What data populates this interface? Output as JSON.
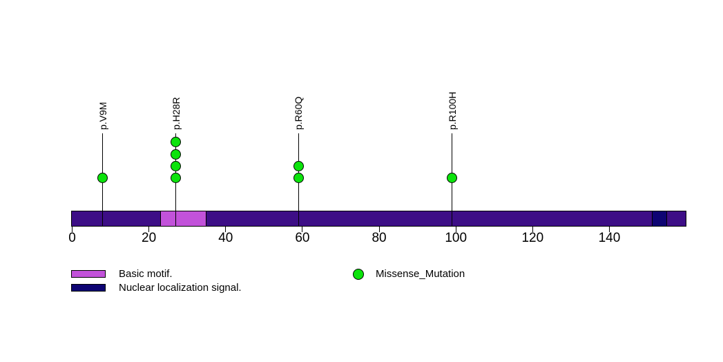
{
  "chart_data": {
    "type": "lollipop",
    "description": "Protein lollipop mutation plot with domain annotations",
    "xlim": [
      0,
      160
    ],
    "axis_ticks": [
      0,
      20,
      40,
      60,
      80,
      100,
      120,
      140
    ],
    "protein": {
      "length": 160,
      "backbone_color": "#3D0E86"
    },
    "domains": [
      {
        "label": "Basic motif.",
        "start": 23,
        "end": 35,
        "color": "#C252DA"
      },
      {
        "label": "Nuclear localization signal.",
        "start": 151,
        "end": 155,
        "color": "#0E0473"
      }
    ],
    "mutations": [
      {
        "label": "p.V9M",
        "position": 9,
        "count": 1,
        "type": "Missense_Mutation"
      },
      {
        "label": "p.H28R",
        "position": 28,
        "count": 4,
        "type": "Missense_Mutation"
      },
      {
        "label": "p.R60Q",
        "position": 60,
        "count": 2,
        "type": "Missense_Mutation"
      },
      {
        "label": "p.R100H",
        "position": 100,
        "count": 1,
        "type": "Missense_Mutation"
      }
    ],
    "mutation_types": [
      {
        "label": "Missense_Mutation",
        "color": "#0CE30C"
      }
    ],
    "legend_position": "bottom",
    "grid": false,
    "title": ""
  }
}
